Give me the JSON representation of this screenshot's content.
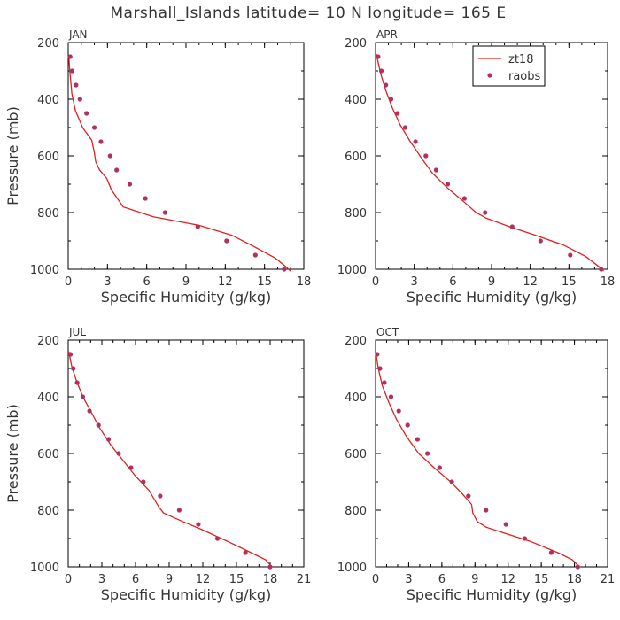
{
  "figure": {
    "title": "Marshall_Islands  latitude= 10 N longitude= 165 E"
  },
  "colors": {
    "model": "#e0201e",
    "obs": "#b03060",
    "axis": "#000000",
    "text": "#333333"
  },
  "chart_data": [
    {
      "type": "line",
      "panel": "JAN",
      "xlabel": "Specific Humidity (g/kg)",
      "ylabel": "Pressure (mb)",
      "xlim": [
        0,
        18
      ],
      "ylim": [
        1000,
        200
      ],
      "xticks": [
        0,
        3,
        6,
        9,
        12,
        15,
        18
      ],
      "yticks": [
        200,
        400,
        600,
        800,
        1000
      ],
      "legend": false,
      "series": [
        {
          "name": "zt18",
          "kind": "line",
          "x": [
            17.0,
            16.6,
            15.8,
            14.2,
            12.5,
            10.0,
            6.5,
            4.2,
            3.3,
            2.95,
            2.4,
            2.1,
            2.0,
            1.8,
            1.1,
            0.55,
            0.28,
            0.12,
            0.05
          ],
          "y": [
            1007,
            990,
            960,
            920,
            880,
            845,
            815,
            780,
            720,
            680,
            650,
            620,
            590,
            545,
            500,
            440,
            380,
            300,
            250
          ]
        },
        {
          "name": "raobs",
          "kind": "scatter",
          "x": [
            16.5,
            14.3,
            12.1,
            9.9,
            7.4,
            5.9,
            4.7,
            3.7,
            3.2,
            2.5,
            2.0,
            1.4,
            0.9,
            0.6,
            0.3,
            0.15
          ],
          "y": [
            1000,
            950,
            900,
            850,
            800,
            750,
            700,
            650,
            600,
            550,
            500,
            450,
            400,
            350,
            300,
            250
          ]
        }
      ]
    },
    {
      "type": "line",
      "panel": "APR",
      "xlabel": "Specific Humidity (g/kg)",
      "ylabel": "",
      "xlim": [
        0,
        18
      ],
      "ylim": [
        1000,
        200
      ],
      "xticks": [
        0,
        3,
        6,
        9,
        12,
        15,
        18
      ],
      "yticks": [
        200,
        400,
        600,
        800,
        1000
      ],
      "legend": true,
      "legend_position": "top-right",
      "series": [
        {
          "name": "zt18",
          "kind": "line",
          "x": [
            17.7,
            17.3,
            16.3,
            14.6,
            12.4,
            10.4,
            8.6,
            7.8,
            6.8,
            5.5,
            4.4,
            3.6,
            2.7,
            1.9,
            1.3,
            0.8,
            0.4,
            0.15,
            0.05
          ],
          "y": [
            1007,
            990,
            955,
            915,
            880,
            850,
            820,
            800,
            760,
            710,
            660,
            610,
            550,
            490,
            430,
            370,
            310,
            260,
            240
          ]
        },
        {
          "name": "raobs",
          "kind": "scatter",
          "x": [
            17.5,
            15.1,
            12.8,
            10.6,
            8.5,
            6.9,
            5.6,
            4.7,
            3.9,
            3.1,
            2.3,
            1.7,
            1.2,
            0.8,
            0.45,
            0.2
          ],
          "y": [
            1000,
            950,
            900,
            850,
            800,
            750,
            700,
            650,
            600,
            550,
            500,
            450,
            400,
            350,
            300,
            250
          ]
        }
      ]
    },
    {
      "type": "line",
      "panel": "JUL",
      "xlabel": "Specific Humidity (g/kg)",
      "ylabel": "Pressure (mb)",
      "xlim": [
        0,
        21
      ],
      "ylim": [
        1000,
        200
      ],
      "xticks": [
        0,
        3,
        6,
        9,
        12,
        15,
        18,
        21
      ],
      "yticks": [
        200,
        400,
        600,
        800,
        1000
      ],
      "legend": false,
      "series": [
        {
          "name": "zt18",
          "kind": "line",
          "x": [
            18.2,
            17.6,
            16.3,
            14.2,
            12.0,
            10.2,
            8.5,
            8.1,
            7.2,
            6.0,
            4.8,
            3.8,
            2.8,
            2.0,
            1.3,
            0.7,
            0.3,
            0.05
          ],
          "y": [
            1002,
            975,
            950,
            910,
            870,
            840,
            810,
            790,
            730,
            680,
            620,
            570,
            510,
            450,
            400,
            340,
            290,
            240
          ]
        },
        {
          "name": "raobs",
          "kind": "scatter",
          "x": [
            18.0,
            15.8,
            13.3,
            11.6,
            9.9,
            8.2,
            6.7,
            5.6,
            4.5,
            3.6,
            2.7,
            1.9,
            1.3,
            0.8,
            0.45,
            0.2
          ],
          "y": [
            1000,
            950,
            900,
            850,
            800,
            750,
            700,
            650,
            600,
            550,
            500,
            450,
            400,
            350,
            300,
            250
          ]
        }
      ]
    },
    {
      "type": "line",
      "panel": "OCT",
      "xlabel": "Specific Humidity (g/kg)",
      "ylabel": "",
      "xlim": [
        0,
        21
      ],
      "ylim": [
        1000,
        200
      ],
      "xticks": [
        0,
        3,
        6,
        9,
        12,
        15,
        18,
        21
      ],
      "yticks": [
        200,
        400,
        600,
        800,
        1000
      ],
      "legend": false,
      "series": [
        {
          "name": "zt18",
          "kind": "line",
          "x": [
            18.5,
            17.8,
            16.5,
            14.0,
            11.6,
            10.0,
            9.2,
            8.8,
            8.7,
            7.8,
            6.8,
            5.3,
            3.9,
            2.8,
            1.9,
            1.2,
            0.6,
            0.25,
            0.05
          ],
          "y": [
            1002,
            975,
            950,
            910,
            880,
            860,
            840,
            810,
            780,
            740,
            700,
            650,
            600,
            540,
            480,
            420,
            360,
            300,
            250
          ]
        },
        {
          "name": "raobs",
          "kind": "scatter",
          "x": [
            18.3,
            15.9,
            13.5,
            11.8,
            10.0,
            8.4,
            6.9,
            5.8,
            4.7,
            3.8,
            2.9,
            2.1,
            1.4,
            0.8,
            0.4,
            0.15
          ],
          "y": [
            1000,
            950,
            900,
            850,
            800,
            750,
            700,
            650,
            600,
            550,
            500,
            450,
            400,
            350,
            300,
            250
          ]
        }
      ]
    }
  ]
}
